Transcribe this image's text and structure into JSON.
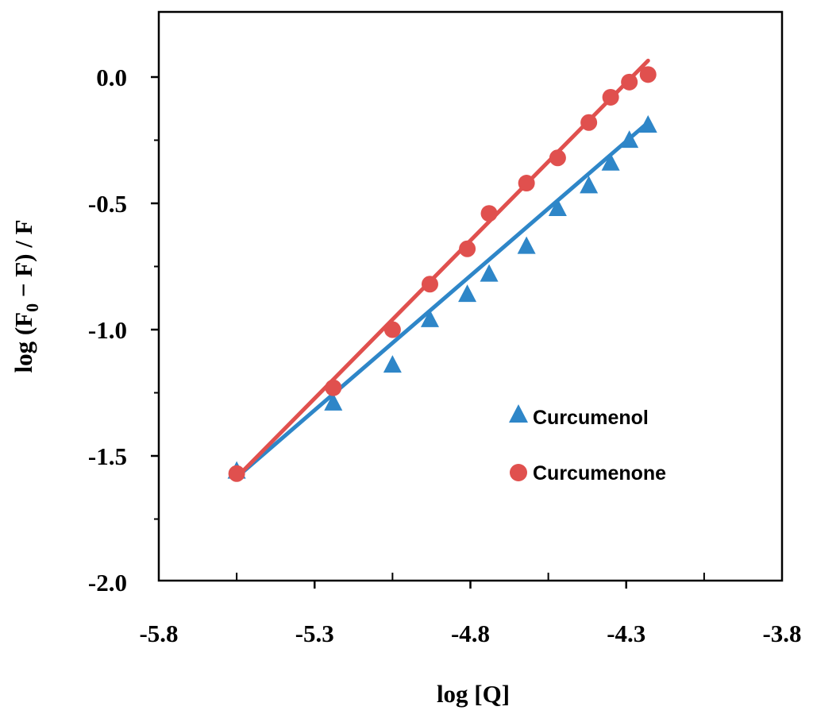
{
  "chart_data": {
    "type": "scatter",
    "title": "",
    "xlabel": "log [Q]",
    "ylabel_parts": [
      "log (F",
      "0",
      " − F) / F"
    ],
    "xlim": [
      -5.8,
      -3.8
    ],
    "ylim": [
      -2.0,
      0.25
    ],
    "x_ticks": [
      -5.8,
      -5.3,
      -4.8,
      -4.3,
      -3.8
    ],
    "x_tick_labels": [
      "-5.8",
      "-5.3",
      "-4.8",
      "-4.3",
      "-3.8"
    ],
    "x_minor_ticks": [
      -5.55,
      -5.05,
      -4.55,
      -4.05
    ],
    "y_ticks": [
      0.0,
      -0.5,
      -1.0,
      -1.5,
      -2.0
    ],
    "y_tick_labels": [
      "0.0",
      "-0.5",
      "-1.0",
      "-1.5",
      "-2.0"
    ],
    "y_minor_ticks": [
      -0.25,
      -0.75,
      -1.25,
      -1.75
    ],
    "legend_position": "center-right",
    "series": [
      {
        "name": "Curcumenol",
        "marker": "triangle",
        "color": "#2E86C8",
        "x": [
          -5.55,
          -5.24,
          -5.05,
          -4.93,
          -4.81,
          -4.74,
          -4.62,
          -4.52,
          -4.42,
          -4.35,
          -4.29,
          -4.23
        ],
        "y": [
          -1.56,
          -1.29,
          -1.14,
          -0.96,
          -0.86,
          -0.78,
          -0.67,
          -0.52,
          -0.43,
          -0.34,
          -0.25,
          -0.19
        ],
        "fit": {
          "x": [
            -5.55,
            -4.23
          ],
          "y": [
            -1.585,
            -0.18
          ]
        }
      },
      {
        "name": "Curcumenone",
        "marker": "circle",
        "color": "#E0504E",
        "x": [
          -5.55,
          -5.24,
          -5.05,
          -4.93,
          -4.81,
          -4.74,
          -4.62,
          -4.52,
          -4.42,
          -4.35,
          -4.29,
          -4.23
        ],
        "y": [
          -1.57,
          -1.23,
          -1.0,
          -0.82,
          -0.68,
          -0.54,
          -0.42,
          -0.32,
          -0.18,
          -0.08,
          -0.02,
          0.01
        ],
        "fit": {
          "x": [
            -5.55,
            -4.23
          ],
          "y": [
            -1.585,
            0.065
          ]
        }
      }
    ]
  }
}
